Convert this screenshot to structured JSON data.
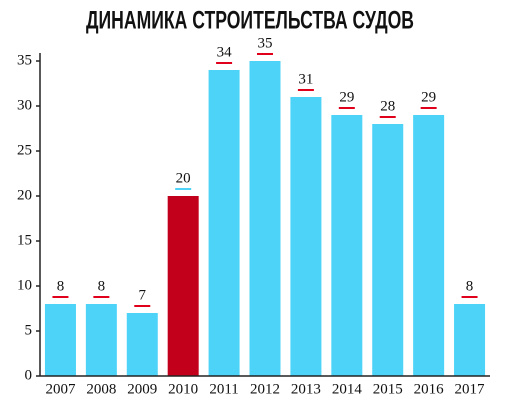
{
  "chart_data": {
    "type": "bar",
    "title": "ДИНАМИКА СТРОИТЕЛЬСТВА СУДОВ",
    "categories": [
      "2007",
      "2008",
      "2009",
      "2010",
      "2011",
      "2012",
      "2013",
      "2014",
      "2015",
      "2016",
      "2017"
    ],
    "values": [
      8,
      8,
      7,
      20,
      34,
      35,
      31,
      29,
      28,
      29,
      8
    ],
    "colors": [
      "#4dd3f7",
      "#4dd3f7",
      "#4dd3f7",
      "#c2001b",
      "#4dd3f7",
      "#4dd3f7",
      "#4dd3f7",
      "#4dd3f7",
      "#4dd3f7",
      "#4dd3f7",
      "#4dd3f7"
    ],
    "ylim": [
      0,
      35
    ],
    "yticks": [
      0,
      5,
      10,
      15,
      20,
      25,
      30,
      35
    ],
    "grid": false
  }
}
